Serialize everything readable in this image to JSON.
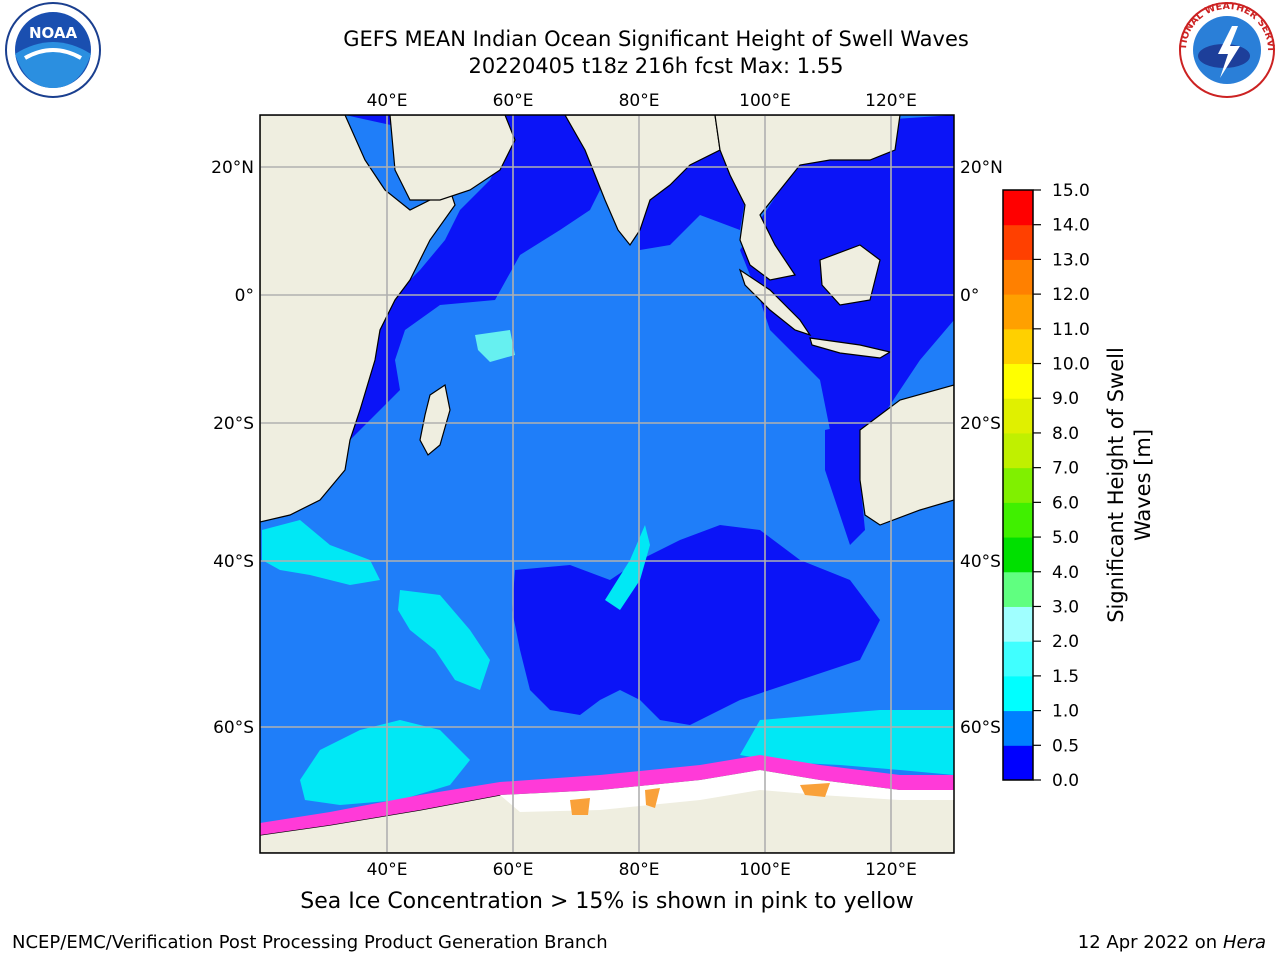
{
  "header": {
    "title_line1": "GEFS MEAN Indian Ocean Significant Height of Swell Waves",
    "title_line2": "20220405 t18z 216h fcst   Max: 1.55"
  },
  "logos": {
    "left": {
      "icon": "noaa-logo-icon",
      "text": "NOAA"
    },
    "right": {
      "icon": "nws-logo-icon",
      "text": "NATIONAL WEATHER SERVICE"
    }
  },
  "map": {
    "lon_labels": [
      "40°E",
      "60°E",
      "80°E",
      "100°E",
      "120°E"
    ],
    "lat_labels": [
      "20°N",
      "0°",
      "20°S",
      "40°S",
      "60°S"
    ],
    "colors": {
      "land": "#efeee0",
      "ocean_shallow": "#1f7ef9",
      "ocean_calm": "#0b14f7",
      "ocean_swell": "#00e8f5",
      "ocean_swell_high": "#66f0f0",
      "ice_pink": "#ff3ad8",
      "ice_orange": "#f9a13a",
      "ice_white": "#ffffff"
    }
  },
  "colorbar": {
    "label_line1": "Significant Height of Swell",
    "label_line2": "Waves [m]",
    "levels": [
      "0.0",
      "0.5",
      "1.0",
      "1.5",
      "2.0",
      "3.0",
      "4.0",
      "5.0",
      "6.0",
      "7.0",
      "8.0",
      "9.0",
      "10.0",
      "11.0",
      "12.0",
      "13.0",
      "14.0",
      "15.0"
    ],
    "colors": [
      "#0000ff",
      "#0080ff",
      "#00ffff",
      "#40ffff",
      "#a0ffff",
      "#60ff80",
      "#00e000",
      "#40f000",
      "#80f000",
      "#c0f000",
      "#e0f000",
      "#ffff00",
      "#ffd000",
      "#ffa000",
      "#ff8000",
      "#ff4000",
      "#ff0000"
    ]
  },
  "caption": "Sea Ice Concentration > 15% is shown in pink to yellow",
  "footer": {
    "left": "NCEP/EMC/Verification Post Processing Product Generation Branch",
    "right_date": "12 Apr 2022 on ",
    "right_host": "Hera"
  }
}
